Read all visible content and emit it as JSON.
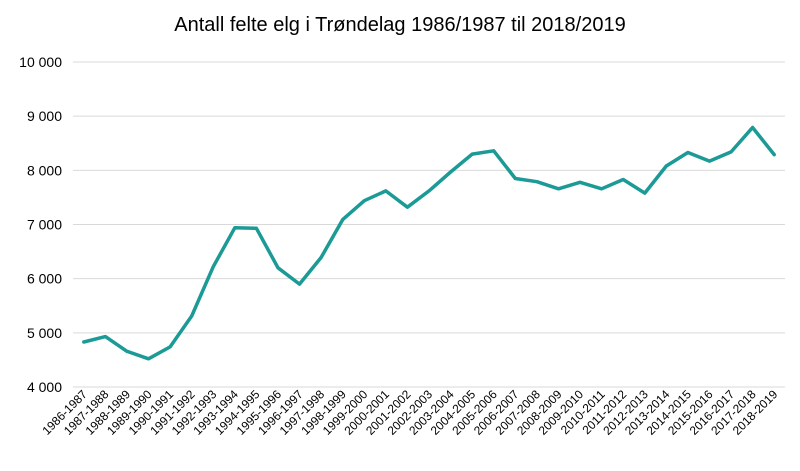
{
  "chart_data": {
    "type": "line",
    "title": "Antall felte elg i Trøndelag 1986/1987 til 2018/2019",
    "xlabel": "",
    "ylabel": "",
    "ylim": [
      4000,
      10000
    ],
    "yticks": [
      4000,
      5000,
      6000,
      7000,
      8000,
      9000,
      10000
    ],
    "ytick_labels": [
      "4 000",
      "5 000",
      "6 000",
      "7 000",
      "8 000",
      "9 000",
      "10 000"
    ],
    "grid": true,
    "line_color": "#1B9A96",
    "categories": [
      "1986-1987",
      "1987-1988",
      "1988-1989",
      "1989-1990",
      "1990-1991",
      "1991-1992",
      "1992-1993",
      "1993-1994",
      "1994-1995",
      "1995-1996",
      "1996-1997",
      "1997-1998",
      "1998-1999",
      "1999-2000",
      "2000-2001",
      "2001-2002",
      "2002-2003",
      "2003-2004",
      "2004-2005",
      "2005-2006",
      "2006-2007",
      "2007-2008",
      "2008-2009",
      "2009-2010",
      "2010-2011",
      "2011-2012",
      "2012-2013",
      "2013-2014",
      "2014-2015",
      "2015-2016",
      "2016-2017",
      "2017-2018",
      "2018-2019"
    ],
    "values": [
      4830,
      4930,
      4660,
      4520,
      4740,
      5310,
      6220,
      6940,
      6930,
      6200,
      5900,
      6390,
      7090,
      7440,
      7620,
      7320,
      7620,
      7970,
      8300,
      8360,
      7850,
      7790,
      7660,
      7780,
      7660,
      7830,
      7580,
      8080,
      8330,
      8170,
      8340,
      8790,
      8290
    ]
  }
}
